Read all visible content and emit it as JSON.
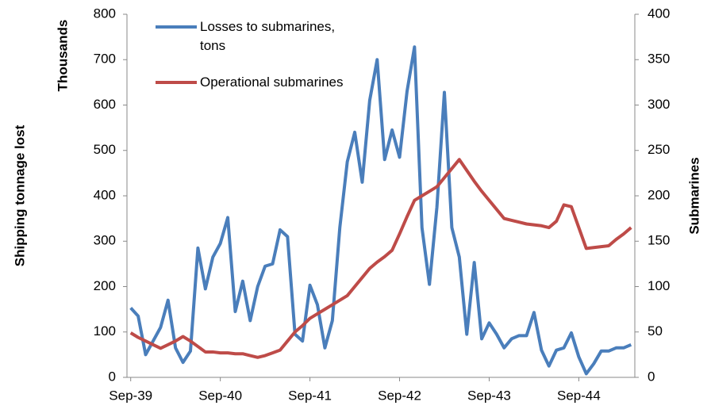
{
  "chart_data": {
    "type": "line",
    "y_label": "Shipping tonnage lost",
    "y_unit_label": "Thousands",
    "y2_label": "Submarines",
    "categories": [
      "Sep-39",
      null,
      null,
      null,
      null,
      null,
      null,
      null,
      null,
      null,
      null,
      null,
      "Sep-40",
      null,
      null,
      null,
      null,
      null,
      null,
      null,
      null,
      null,
      null,
      null,
      "Sep-41",
      null,
      null,
      null,
      null,
      null,
      null,
      null,
      null,
      null,
      null,
      null,
      "Sep-42",
      null,
      null,
      null,
      null,
      null,
      null,
      null,
      null,
      null,
      null,
      null,
      "Sep-43",
      null,
      null,
      null,
      null,
      null,
      null,
      null,
      null,
      null,
      null,
      null,
      "Sep-44",
      null,
      null,
      null,
      null,
      null,
      null,
      null
    ],
    "ylim": [
      0,
      800
    ],
    "yticks": [
      0,
      100,
      200,
      300,
      400,
      500,
      600,
      700,
      800
    ],
    "y2lim": [
      0,
      400
    ],
    "y2ticks": [
      0,
      50,
      100,
      150,
      200,
      250,
      300,
      350,
      400
    ],
    "grid": false,
    "series": [
      {
        "name": "Losses to submarines, tons",
        "color": "#4a7ebb",
        "values": [
          153,
          135,
          50,
          80,
          110,
          170,
          65,
          33,
          58,
          285,
          195,
          265,
          295,
          352,
          145,
          212,
          125,
          200,
          245,
          250,
          325,
          310,
          95,
          80,
          203,
          160,
          65,
          125,
          330,
          475,
          540,
          430,
          610,
          700,
          480,
          545,
          485,
          630,
          728,
          330,
          205,
          375,
          628,
          330,
          265,
          95,
          253,
          85,
          120,
          95,
          65,
          85,
          92,
          92,
          143,
          60,
          25,
          60,
          65,
          98,
          45,
          8,
          30,
          58,
          58,
          65,
          65,
          72
        ]
      },
      {
        "name": "Operational submarines",
        "color": "#be4b48",
        "axis": "y2",
        "values": [
          49,
          44,
          40,
          36,
          32,
          36,
          40,
          45,
          40,
          34,
          28,
          28,
          27,
          27,
          26,
          26,
          24,
          22,
          24,
          27,
          30,
          40,
          50,
          57,
          65,
          70,
          75,
          80,
          85,
          90,
          100,
          110,
          120,
          127,
          133,
          140,
          158,
          177,
          195,
          200,
          205,
          210,
          220,
          230,
          240,
          228,
          216,
          205,
          195,
          185,
          175,
          173,
          171,
          169,
          168,
          167,
          165,
          172,
          190,
          188,
          165,
          142,
          143,
          144,
          145,
          152,
          158,
          165
        ]
      }
    ]
  }
}
